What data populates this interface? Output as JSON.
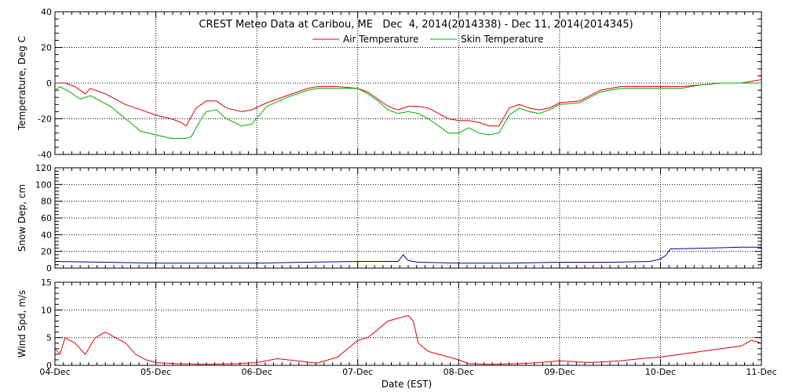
{
  "chart_data": {
    "type": "line",
    "title": "CREST Meteo Data at Caribou, ME   Dec  4, 2014(2014338) - Dec 11, 2014(2014345)",
    "xlabel": "Date (EST)",
    "x_tick_labels": [
      "04-Dec",
      "05-Dec",
      "06-Dec",
      "07-Dec",
      "08-Dec",
      "09-Dec",
      "10-Dec",
      "11-Dec"
    ],
    "grid": true,
    "panels": [
      {
        "ylabel": "Temperature, Deg C",
        "ylim": [
          -40,
          40
        ],
        "yticks": [
          -40,
          -20,
          0,
          20,
          40
        ],
        "legend_placement": "top-center",
        "series": [
          {
            "name": "Air Temperature",
            "color": "#dd0000",
            "x_days": [
              0,
              0.1,
              0.2,
              0.3,
              0.35,
              0.5,
              0.6,
              0.7,
              0.8,
              1.0,
              1.15,
              1.25,
              1.3,
              1.4,
              1.5,
              1.6,
              1.7,
              1.85,
              1.95,
              2.1,
              2.3,
              2.5,
              2.6,
              2.8,
              3.0,
              3.1,
              3.2,
              3.3,
              3.4,
              3.5,
              3.6,
              3.7,
              3.8,
              3.9,
              4.0,
              4.1,
              4.2,
              4.3,
              4.4,
              4.5,
              4.6,
              4.7,
              4.8,
              4.9,
              5.0,
              5.2,
              5.4,
              5.6,
              5.8,
              6.0,
              6.2,
              6.4,
              6.6,
              6.8,
              7.0
            ],
            "values": [
              0,
              0,
              -2,
              -6,
              -3,
              -6,
              -9,
              -12,
              -14,
              -18,
              -20,
              -22,
              -24,
              -14,
              -10,
              -10,
              -14,
              -16,
              -15,
              -11,
              -7,
              -3,
              -2,
              -2,
              -3,
              -5,
              -9,
              -13,
              -15,
              -13,
              -13,
              -14,
              -17,
              -20,
              -21,
              -21,
              -22,
              -24,
              -24,
              -14,
              -12,
              -14,
              -15,
              -14,
              -11,
              -10,
              -4,
              -2,
              -2,
              -2,
              -2,
              -1,
              0,
              0,
              2
            ]
          },
          {
            "name": "Skin Temperature",
            "color": "#00aa00",
            "x_days": [
              0,
              0.05,
              0.15,
              0.25,
              0.35,
              0.45,
              0.55,
              0.7,
              0.85,
              1.0,
              1.15,
              1.3,
              1.35,
              1.45,
              1.5,
              1.6,
              1.7,
              1.85,
              1.95,
              2.1,
              2.3,
              2.5,
              2.6,
              2.8,
              3.0,
              3.1,
              3.2,
              3.3,
              3.4,
              3.5,
              3.6,
              3.7,
              3.8,
              3.9,
              4.0,
              4.1,
              4.2,
              4.3,
              4.4,
              4.5,
              4.6,
              4.7,
              4.8,
              4.9,
              5.0,
              5.2,
              5.4,
              5.6,
              5.8,
              6.0,
              6.2,
              6.4,
              6.6,
              6.8,
              7.0
            ],
            "values": [
              -4,
              -2,
              -5,
              -9,
              -7,
              -10,
              -13,
              -20,
              -27,
              -29,
              -31,
              -31,
              -30,
              -20,
              -16,
              -15,
              -20,
              -24,
              -23,
              -13,
              -8,
              -4,
              -3,
              -3,
              -3,
              -6,
              -10,
              -15,
              -17,
              -16,
              -17,
              -20,
              -24,
              -28,
              -28,
              -25,
              -28,
              -29,
              -28,
              -18,
              -14,
              -16,
              -17,
              -15,
              -12,
              -11,
              -5,
              -3,
              -3,
              -3,
              -3,
              -1,
              0,
              0,
              0
            ]
          }
        ]
      },
      {
        "ylabel": "Snow Dep, cm",
        "ylim": [
          0,
          120
        ],
        "yticks": [
          0,
          20,
          40,
          60,
          80,
          100,
          120
        ],
        "series": [
          {
            "name": "",
            "color": "#000099",
            "x_days": [
              0,
              0.5,
              1.0,
              1.5,
              2.0,
              2.5,
              3.0,
              3.4,
              3.45,
              3.5,
              3.55,
              3.6,
              4.0,
              4.5,
              5.0,
              5.5,
              5.9,
              6.0,
              6.05,
              6.1,
              6.5,
              6.8,
              7.0
            ],
            "values": [
              8,
              7,
              6,
              6,
              6,
              7,
              8,
              8,
              16,
              9,
              8,
              7,
              6,
              6,
              7,
              7,
              8,
              11,
              15,
              23,
              24,
              25,
              25
            ]
          }
        ]
      },
      {
        "ylabel": "Wind Spd, m/s",
        "ylim": [
          0,
          15
        ],
        "yticks": [
          0,
          5,
          10,
          15
        ],
        "series": [
          {
            "name": "",
            "color": "#dd0000",
            "x_days": [
              0,
              0.05,
              0.1,
              0.2,
              0.3,
              0.4,
              0.5,
              0.6,
              0.7,
              0.8,
              0.9,
              1.0,
              1.2,
              1.5,
              1.8,
              2.0,
              2.2,
              2.4,
              2.6,
              2.8,
              2.9,
              3.0,
              3.1,
              3.2,
              3.3,
              3.4,
              3.5,
              3.55,
              3.6,
              3.7,
              3.8,
              3.9,
              4.0,
              4.1,
              4.3,
              4.6,
              4.8,
              5.0,
              5.3,
              5.6,
              5.8,
              6.0,
              6.2,
              6.4,
              6.6,
              6.8,
              6.9,
              7.0
            ],
            "values": [
              3,
              2,
              5,
              4,
              2,
              5,
              6,
              5,
              4,
              2,
              1,
              0.5,
              0.3,
              0.2,
              0.3,
              0.5,
              1.2,
              0.8,
              0.4,
              1.5,
              3,
              4.5,
              5,
              6.5,
              8,
              8.5,
              9,
              8,
              4,
              2.5,
              2,
              1.5,
              1,
              0.3,
              0.2,
              0.3,
              0.5,
              0.8,
              0.5,
              0.8,
              1.2,
              1.5,
              2,
              2.5,
              3,
              3.5,
              4.5,
              4
            ]
          }
        ]
      }
    ]
  }
}
